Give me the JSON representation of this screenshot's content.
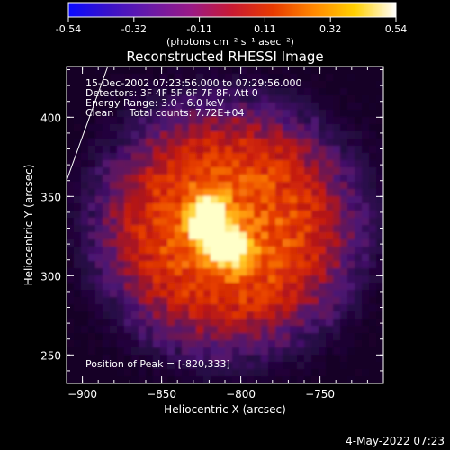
{
  "chart_data": {
    "type": "heatmap",
    "title": "Reconstructed RHESSI Image",
    "xlabel": "Heliocentric X (arcsec)",
    "ylabel": "Heliocentric Y (arcsec)",
    "xlim": [
      -910,
      -710
    ],
    "ylim": [
      232,
      432
    ],
    "xticks": [
      -900,
      -850,
      -800,
      -750
    ],
    "yticks": [
      250,
      300,
      350,
      400
    ],
    "colorbar": {
      "ticks": [
        "-0.54",
        "-0.32",
        "-0.11",
        "0.11",
        "0.32",
        "0.54"
      ],
      "range": [
        -0.54,
        0.54
      ],
      "label": "(photons cm⁻² s⁻¹ asec⁻²)",
      "colors": [
        "#0a0aff",
        "#3a12c8",
        "#6a1aa6",
        "#9a1a86",
        "#c81a32",
        "#e83a00",
        "#ff8800",
        "#ffd000",
        "#ffffff"
      ]
    },
    "annotations": [
      "15-Dec-2002 07:23:56.000 to 07:29:56.000",
      "Detectors: 3F 4F 5F 6F 7F 8F, Att 0",
      "Energy Range: 3.0 - 6.0 keV",
      "Clean     Total counts: 7.72E+04"
    ],
    "peak_label": "Position of Peak = [-820,333]",
    "peak": [
      -820,
      333
    ],
    "limb_line": [
      [
        -910,
        360
      ],
      [
        -884,
        432
      ]
    ]
  },
  "footer": {
    "date": "4-May-2022 07:23"
  }
}
